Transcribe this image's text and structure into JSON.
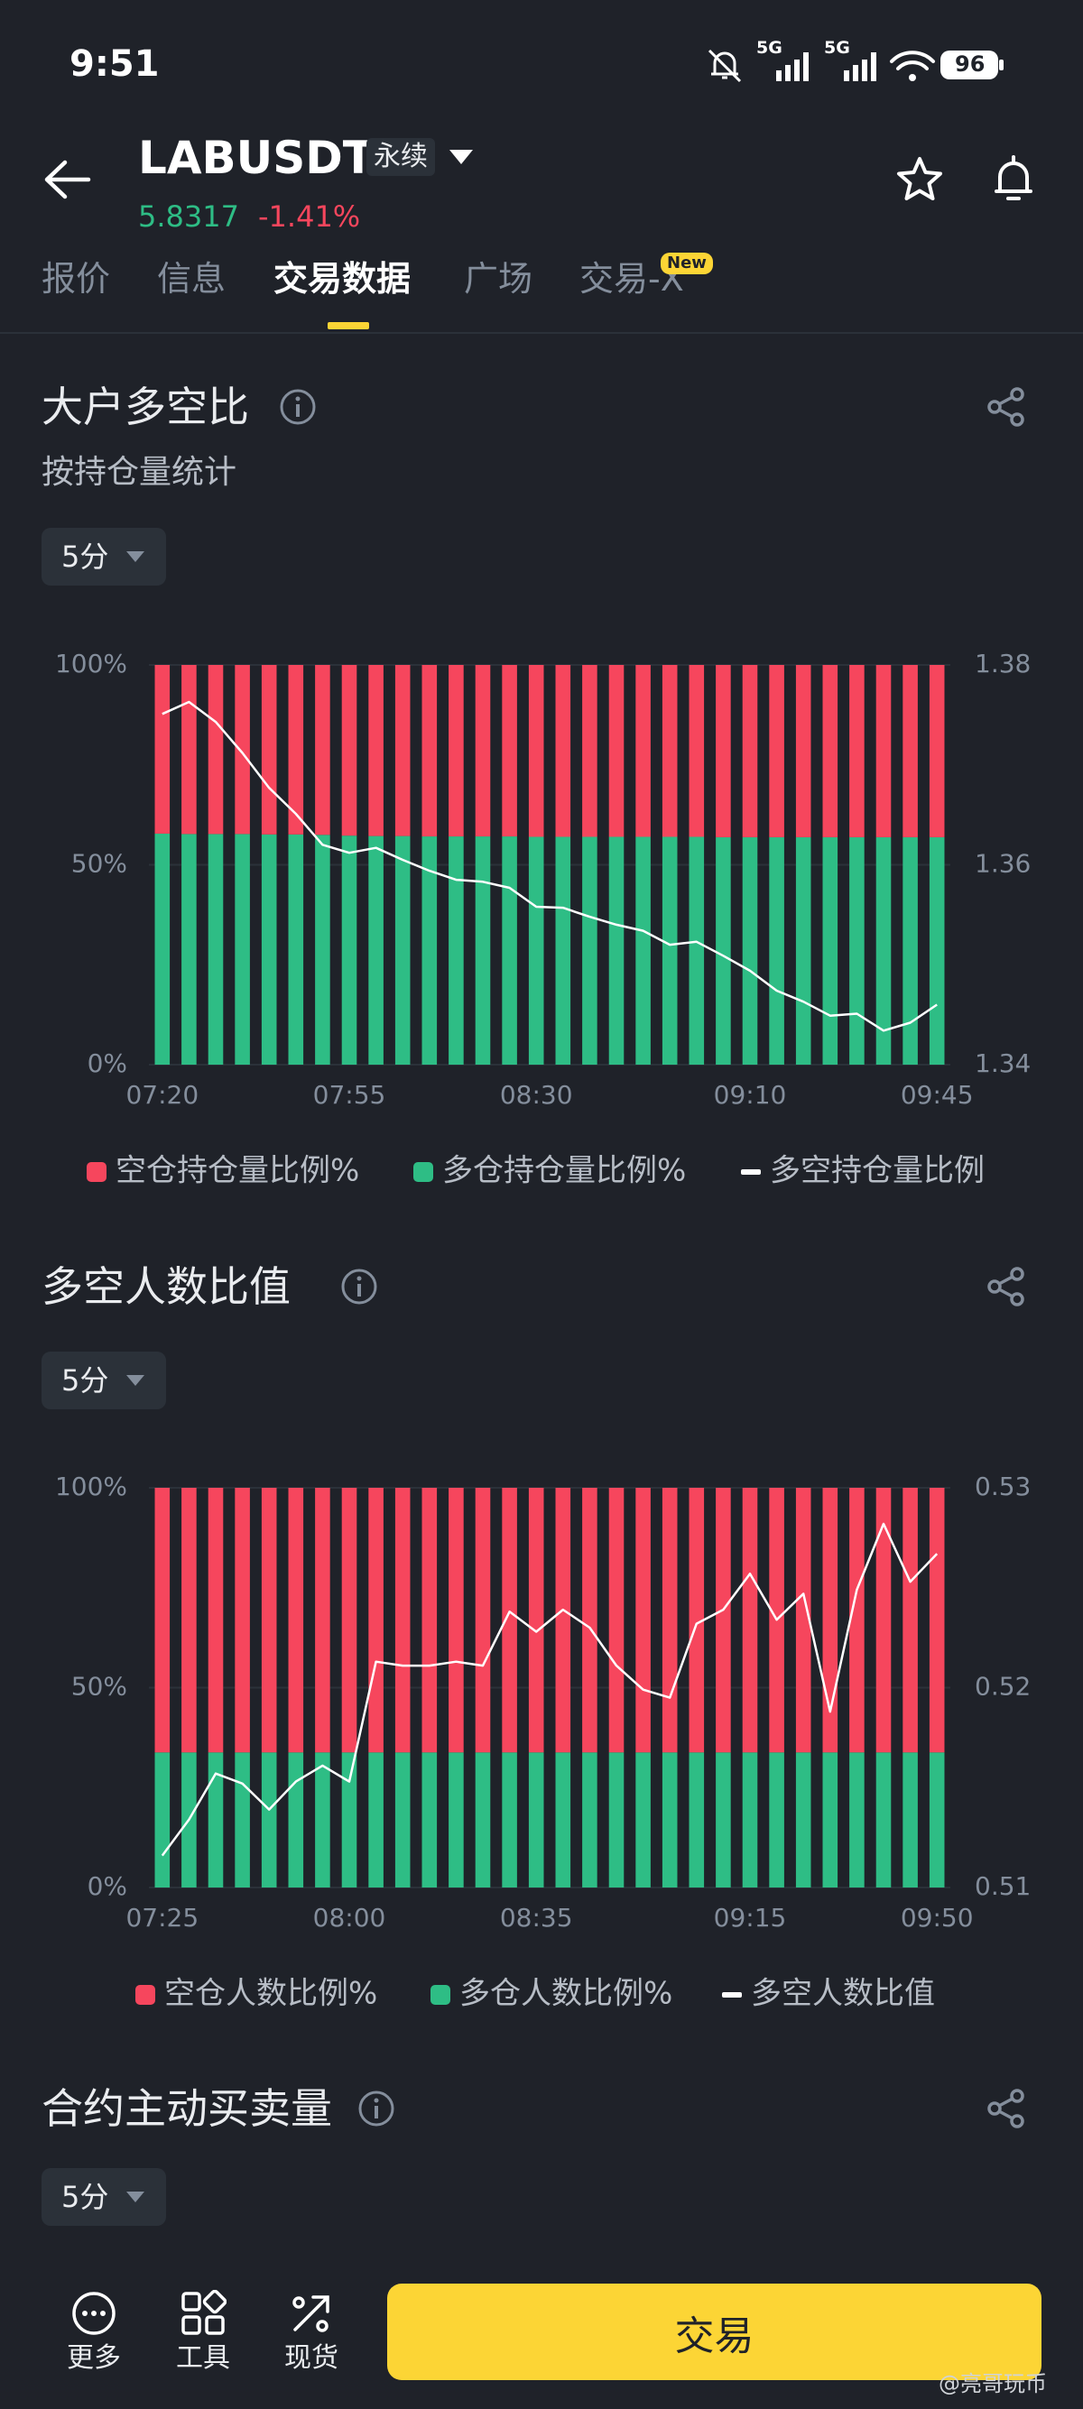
{
  "status_bar": {
    "time": "9:51",
    "network": [
      "5G",
      "5G"
    ],
    "battery": "96"
  },
  "header": {
    "symbol": "LABUSDT",
    "contract_type": "永续",
    "price": "5.8317",
    "change": "-1.41%"
  },
  "tabs": {
    "items": [
      "报价",
      "信息",
      "交易数据",
      "广场",
      "交易-X"
    ],
    "active": 2,
    "badge": "New"
  },
  "sections": [
    {
      "title": "大户多空比",
      "subtitle": "按持仓量统计",
      "interval": "5分"
    },
    {
      "title": "多空人数比值",
      "interval": "5分"
    },
    {
      "title": "合约主动买卖量",
      "interval": "5分"
    }
  ],
  "chart_data": [
    {
      "type": "bar",
      "stacked": true,
      "grid": true,
      "categories": [
        "07:20",
        null,
        null,
        null,
        null,
        null,
        null,
        "07:55",
        null,
        null,
        null,
        null,
        null,
        null,
        "08:30",
        null,
        null,
        null,
        null,
        null,
        null,
        null,
        "09:10",
        null,
        null,
        null,
        null,
        null,
        null,
        "09:45"
      ],
      "series": [
        {
          "name": "空仓持仓量比例%",
          "color": "#f6465d",
          "values": [
            42.2,
            42.3,
            42.3,
            42.3,
            42.4,
            42.4,
            42.5,
            42.7,
            42.8,
            42.8,
            42.9,
            42.9,
            42.9,
            42.9,
            43,
            43,
            43,
            43,
            43,
            43,
            43,
            43.1,
            43.1,
            43.1,
            43.1,
            43.1,
            43.1,
            43.1,
            43.1,
            43.1
          ]
        },
        {
          "name": "多仓持仓量比例%",
          "color": "#2ebd85",
          "values": [
            57.8,
            57.7,
            57.7,
            57.7,
            57.6,
            57.6,
            57.5,
            57.3,
            57.2,
            57.2,
            57.1,
            57.1,
            57.1,
            57.1,
            57,
            57,
            57,
            57,
            57,
            57,
            57,
            56.9,
            56.9,
            56.9,
            56.9,
            56.9,
            56.9,
            56.9,
            56.9,
            56.9
          ]
        },
        {
          "name": "多空持仓量比例",
          "color": "#ffffff",
          "type": "line",
          "axis": "y2",
          "values": [
            1.3751,
            1.3763,
            1.3743,
            1.3712,
            1.3677,
            1.3651,
            1.362,
            1.3612,
            1.3617,
            1.3605,
            1.3594,
            1.3585,
            1.3583,
            1.3577,
            1.3558,
            1.3557,
            1.3548,
            1.354,
            1.3534,
            1.352,
            1.3523,
            1.3509,
            1.3494,
            1.3474,
            1.3463,
            1.3449,
            1.3451,
            1.3434,
            1.3442,
            1.346
          ]
        }
      ],
      "ylim": [
        0,
        100
      ],
      "yticks": [
        {
          "value": 0,
          "label": "0%"
        },
        {
          "value": 50,
          "label": "50%"
        },
        {
          "value": 100,
          "label": "100%"
        }
      ],
      "y2lim": [
        1.34,
        1.38
      ],
      "y2ticks": [
        1.34,
        1.36,
        1.38
      ]
    },
    {
      "type": "bar",
      "stacked": true,
      "grid": true,
      "categories": [
        "07:25",
        null,
        null,
        null,
        null,
        null,
        null,
        "08:00",
        null,
        null,
        null,
        null,
        null,
        null,
        "08:35",
        null,
        null,
        null,
        null,
        null,
        null,
        null,
        "09:15",
        null,
        null,
        null,
        null,
        null,
        null,
        "09:50"
      ],
      "series": [
        {
          "name": "空仓人数比例%",
          "color": "#f6465d",
          "values": [
            66.2,
            66.2,
            66.2,
            66.2,
            66.2,
            66.2,
            66.2,
            66.2,
            66.2,
            66.2,
            66.2,
            66.2,
            66.2,
            66.2,
            66.2,
            66.2,
            66.2,
            66.2,
            66.2,
            66.2,
            66.2,
            66.2,
            66.2,
            66.2,
            66.2,
            66.2,
            66.2,
            66.2,
            66.2,
            66.2
          ]
        },
        {
          "name": "多仓人数比例%",
          "color": "#2ebd85",
          "values": [
            33.8,
            33.8,
            33.8,
            33.8,
            33.8,
            33.8,
            33.8,
            33.8,
            33.8,
            33.8,
            33.8,
            33.8,
            33.8,
            33.8,
            33.8,
            33.8,
            33.8,
            33.8,
            33.8,
            33.8,
            33.8,
            33.8,
            33.8,
            33.8,
            33.8,
            33.8,
            33.8,
            33.8,
            33.8,
            33.8
          ]
        },
        {
          "name": "多空人数比值",
          "color": "#ffffff",
          "type": "line",
          "axis": "y2",
          "values": [
            0.5116,
            0.5134,
            0.5157,
            0.5152,
            0.5139,
            0.5153,
            0.5161,
            0.5153,
            0.5213,
            0.5211,
            0.5211,
            0.5213,
            0.5211,
            0.5238,
            0.5228,
            0.5239,
            0.523,
            0.5211,
            0.5199,
            0.5195,
            0.5232,
            0.5239,
            0.5257,
            0.5234,
            0.5247,
            0.5188,
            0.5249,
            0.5282,
            0.5253,
            0.5267
          ]
        }
      ],
      "ylim": [
        0,
        100
      ],
      "yticks": [
        {
          "value": 0,
          "label": "0%"
        },
        {
          "value": 50,
          "label": "50%"
        },
        {
          "value": 100,
          "label": "100%"
        }
      ],
      "y2lim": [
        0.51,
        0.53
      ],
      "y2ticks": [
        0.51,
        0.52,
        0.53
      ]
    }
  ],
  "bottom_bar": {
    "items": [
      "更多",
      "工具",
      "现货"
    ],
    "trade_button": "交易"
  },
  "watermark": "@亮哥玩币"
}
